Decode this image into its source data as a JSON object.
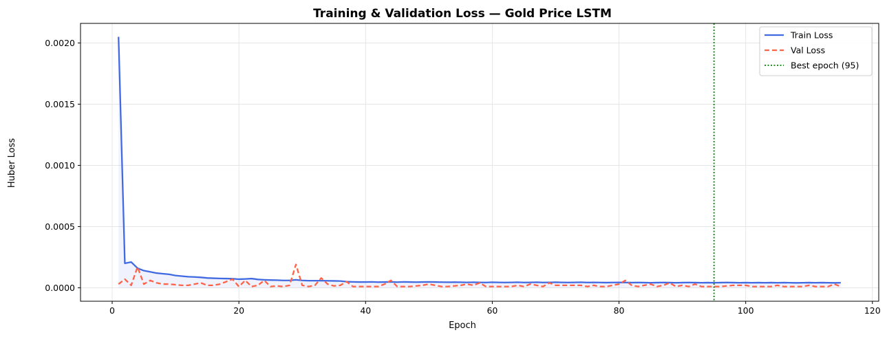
{
  "chart_data": {
    "type": "line",
    "title": "Training & Validation Loss — Gold Price LSTM",
    "xlabel": "Epoch",
    "ylabel": "Huber Loss",
    "xlim": [
      -5,
      121
    ],
    "ylim": [
      -0.00011,
      0.00216
    ],
    "xticks": [
      0,
      20,
      40,
      60,
      80,
      100,
      120
    ],
    "xtick_labels": [
      "0",
      "20",
      "40",
      "60",
      "80",
      "100",
      "120"
    ],
    "yticks": [
      0.0,
      0.0005,
      0.001,
      0.0015,
      0.002
    ],
    "ytick_labels": [
      "0.0000",
      "0.0005",
      "0.0010",
      "0.0015",
      "0.0020"
    ],
    "grid": true,
    "legend_position": "top-right",
    "best_epoch": 95,
    "x": [
      1,
      2,
      3,
      4,
      5,
      6,
      7,
      8,
      9,
      10,
      11,
      12,
      13,
      14,
      15,
      16,
      17,
      18,
      19,
      20,
      21,
      22,
      23,
      24,
      25,
      26,
      27,
      28,
      29,
      30,
      31,
      32,
      33,
      34,
      35,
      36,
      37,
      38,
      39,
      40,
      41,
      42,
      43,
      44,
      45,
      46,
      47,
      48,
      49,
      50,
      51,
      52,
      53,
      54,
      55,
      56,
      57,
      58,
      59,
      60,
      61,
      62,
      63,
      64,
      65,
      66,
      67,
      68,
      69,
      70,
      71,
      72,
      73,
      74,
      75,
      76,
      77,
      78,
      79,
      80,
      81,
      82,
      83,
      84,
      85,
      86,
      87,
      88,
      89,
      90,
      91,
      92,
      93,
      94,
      95,
      96,
      97,
      98,
      99,
      100,
      101,
      102,
      103,
      104,
      105,
      106,
      107,
      108,
      109,
      110,
      111,
      112,
      113,
      114,
      115
    ],
    "series": [
      {
        "name": "Train Loss",
        "color": "#4169e1",
        "style": "solid",
        "values": [
          0.00205,
          0.0002,
          0.00021,
          0.00016,
          0.00014,
          0.00013,
          0.00012,
          0.000115,
          0.00011,
          0.0001,
          9.5e-05,
          9e-05,
          8.8e-05,
          8.5e-05,
          8e-05,
          7.8e-05,
          7.6e-05,
          7.5e-05,
          7.4e-05,
          7e-05,
          7.2e-05,
          7.5e-05,
          6.8e-05,
          6.5e-05,
          6.3e-05,
          6.2e-05,
          6e-05,
          6e-05,
          6.5e-05,
          6e-05,
          5.8e-05,
          5.8e-05,
          5.8e-05,
          5.7e-05,
          5.6e-05,
          5.5e-05,
          5e-05,
          4.8e-05,
          4.7e-05,
          4.7e-05,
          4.8e-05,
          4.6e-05,
          4.7e-05,
          4.8e-05,
          4.6e-05,
          4.8e-05,
          4.7e-05,
          4.6e-05,
          4.7e-05,
          4.8e-05,
          4.7e-05,
          4.6e-05,
          4.5e-05,
          4.6e-05,
          4.5e-05,
          4.4e-05,
          4.5e-05,
          4.4e-05,
          4.3e-05,
          4.5e-05,
          4.4e-05,
          4.3e-05,
          4.4e-05,
          4.5e-05,
          4.3e-05,
          4.4e-05,
          4.5e-05,
          4.3e-05,
          4.4e-05,
          4.5e-05,
          4.4e-05,
          4.3e-05,
          4.4e-05,
          4.5e-05,
          4.3e-05,
          4.4e-05,
          4.3e-05,
          4.2e-05,
          4.3e-05,
          4.4e-05,
          4.3e-05,
          4.2e-05,
          4.3e-05,
          4.2e-05,
          4.1e-05,
          4.2e-05,
          4.3e-05,
          4.2e-05,
          4.1e-05,
          4.2e-05,
          4.3e-05,
          4.2e-05,
          4.1e-05,
          4.2e-05,
          4.1e-05,
          4.2e-05,
          4.3e-05,
          4.2e-05,
          4.1e-05,
          4.2e-05,
          4.1e-05,
          4.2e-05,
          4.1e-05,
          4.2e-05,
          4.1e-05,
          4.2e-05,
          4.1e-05,
          4e-05,
          4.1e-05,
          4.2e-05,
          4.1e-05,
          4.2e-05,
          4.1e-05,
          4e-05,
          4.1e-05
        ]
      },
      {
        "name": "Val Loss",
        "color": "#ff6347",
        "style": "dashed",
        "values": [
          3e-05,
          7e-05,
          2e-05,
          0.00017,
          3e-05,
          6e-05,
          4e-05,
          3e-05,
          3e-05,
          2.5e-05,
          2e-05,
          2e-05,
          3e-05,
          4e-05,
          2e-05,
          2e-05,
          3e-05,
          5e-05,
          7e-05,
          1e-05,
          6e-05,
          1e-05,
          2e-05,
          6e-05,
          1e-05,
          1.5e-05,
          1e-05,
          2e-05,
          0.00019,
          2e-05,
          1e-05,
          2e-05,
          8e-05,
          3e-05,
          1.5e-05,
          2e-05,
          5e-05,
          1e-05,
          1e-05,
          1e-05,
          1e-05,
          1e-05,
          3e-05,
          6e-05,
          1e-05,
          1e-05,
          1e-05,
          1.5e-05,
          2e-05,
          3e-05,
          2e-05,
          1e-05,
          1e-05,
          1.5e-05,
          2e-05,
          3e-05,
          2e-05,
          4e-05,
          1e-05,
          1e-05,
          1e-05,
          1e-05,
          1e-05,
          2e-05,
          1e-05,
          3e-05,
          2e-05,
          1e-05,
          4e-05,
          2e-05,
          2e-05,
          2e-05,
          2e-05,
          2e-05,
          1e-05,
          2e-05,
          1e-05,
          1e-05,
          2e-05,
          3e-05,
          6e-05,
          2e-05,
          1e-05,
          2e-05,
          3e-05,
          1e-05,
          2e-05,
          4e-05,
          1e-05,
          2e-05,
          1e-05,
          3e-05,
          1e-05,
          1e-05,
          1e-05,
          1e-05,
          1.5e-05,
          2e-05,
          2e-05,
          2e-05,
          1e-05,
          1e-05,
          1e-05,
          1e-05,
          2e-05,
          1e-05,
          1e-05,
          1e-05,
          1e-05,
          2e-05,
          1e-05,
          1e-05,
          1e-05,
          3e-05,
          1e-05
        ]
      },
      {
        "name": "Best epoch (95)",
        "color": "#008000",
        "style": "dotted"
      }
    ]
  }
}
